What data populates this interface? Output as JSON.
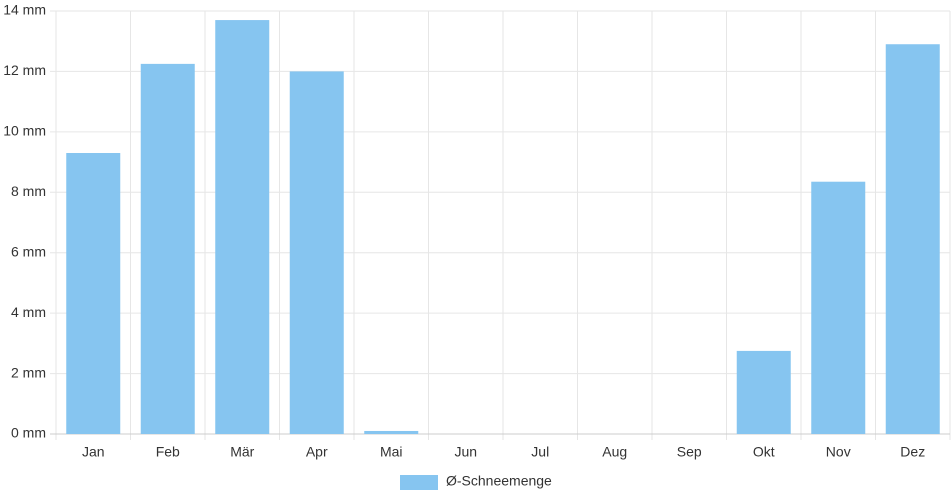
{
  "chart_data": {
    "type": "bar",
    "categories": [
      "Jan",
      "Feb",
      "Mär",
      "Apr",
      "Mai",
      "Jun",
      "Jul",
      "Aug",
      "Sep",
      "Okt",
      "Nov",
      "Dez"
    ],
    "series": [
      {
        "name": "Ø-Schneemenge",
        "color": "#86c5f0",
        "values": [
          9.3,
          12.25,
          13.7,
          12.0,
          0.1,
          0,
          0,
          0,
          0,
          2.75,
          8.35,
          12.9
        ]
      }
    ],
    "ylim": [
      0,
      14
    ],
    "yticks": [
      {
        "value": 0,
        "label": "0 mm"
      },
      {
        "value": 2,
        "label": "2 mm"
      },
      {
        "value": 4,
        "label": "4 mm"
      },
      {
        "value": 6,
        "label": "6 mm"
      },
      {
        "value": 8,
        "label": "8 mm"
      },
      {
        "value": 10,
        "label": "10 mm"
      },
      {
        "value": 12,
        "label": "12 mm"
      },
      {
        "value": 14,
        "label": "14 mm"
      }
    ],
    "grid": true,
    "legend": "bottom"
  }
}
